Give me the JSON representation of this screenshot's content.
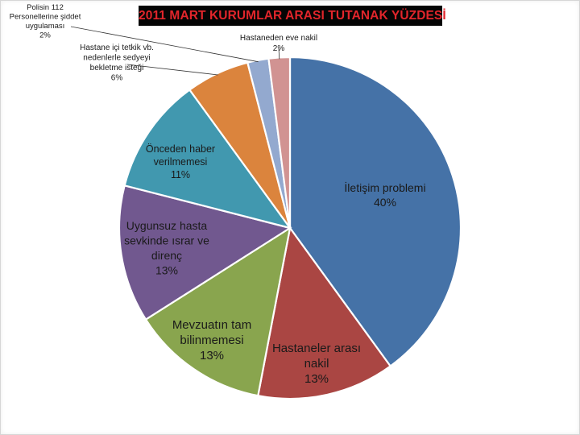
{
  "chart_data": {
    "type": "pie",
    "title": "2011 MART KURUMLAR ARASI TUTANAK YÜZDESİ",
    "slices": [
      {
        "label_lines": [
          "İletişim problemi"
        ],
        "percent_label": "40%",
        "value": 40,
        "color": "#4572a7"
      },
      {
        "label_lines": [
          "Hastaneler arası",
          "nakil"
        ],
        "percent_label": "13%",
        "value": 13,
        "color": "#aa4643"
      },
      {
        "label_lines": [
          "Mevzuatın tam",
          "bilinmemesi"
        ],
        "percent_label": "13%",
        "value": 13,
        "color": "#89a54e"
      },
      {
        "label_lines": [
          "Uygunsuz hasta",
          "sevkinde ısrar ve",
          "direnç"
        ],
        "percent_label": "13%",
        "value": 13,
        "color": "#71588f"
      },
      {
        "label_lines": [
          "Önceden haber",
          "verilmemesi"
        ],
        "percent_label": "11%",
        "value": 11,
        "color": "#4198af"
      },
      {
        "label_lines": [
          "Hastane içi tetkik vb.",
          "nedenlerle sedyeyi",
          "bekletme isteği"
        ],
        "percent_label": "6%",
        "value": 6,
        "color": "#db843d"
      },
      {
        "label_lines": [
          "Polisin 112",
          "Personellerine şiddet",
          "uygulaması"
        ],
        "percent_label": "2%",
        "value": 2,
        "color": "#93a9cf"
      },
      {
        "label_lines": [
          "Hastaneden eve nakil"
        ],
        "percent_label": "2%",
        "value": 2,
        "color": "#d19392"
      }
    ]
  }
}
